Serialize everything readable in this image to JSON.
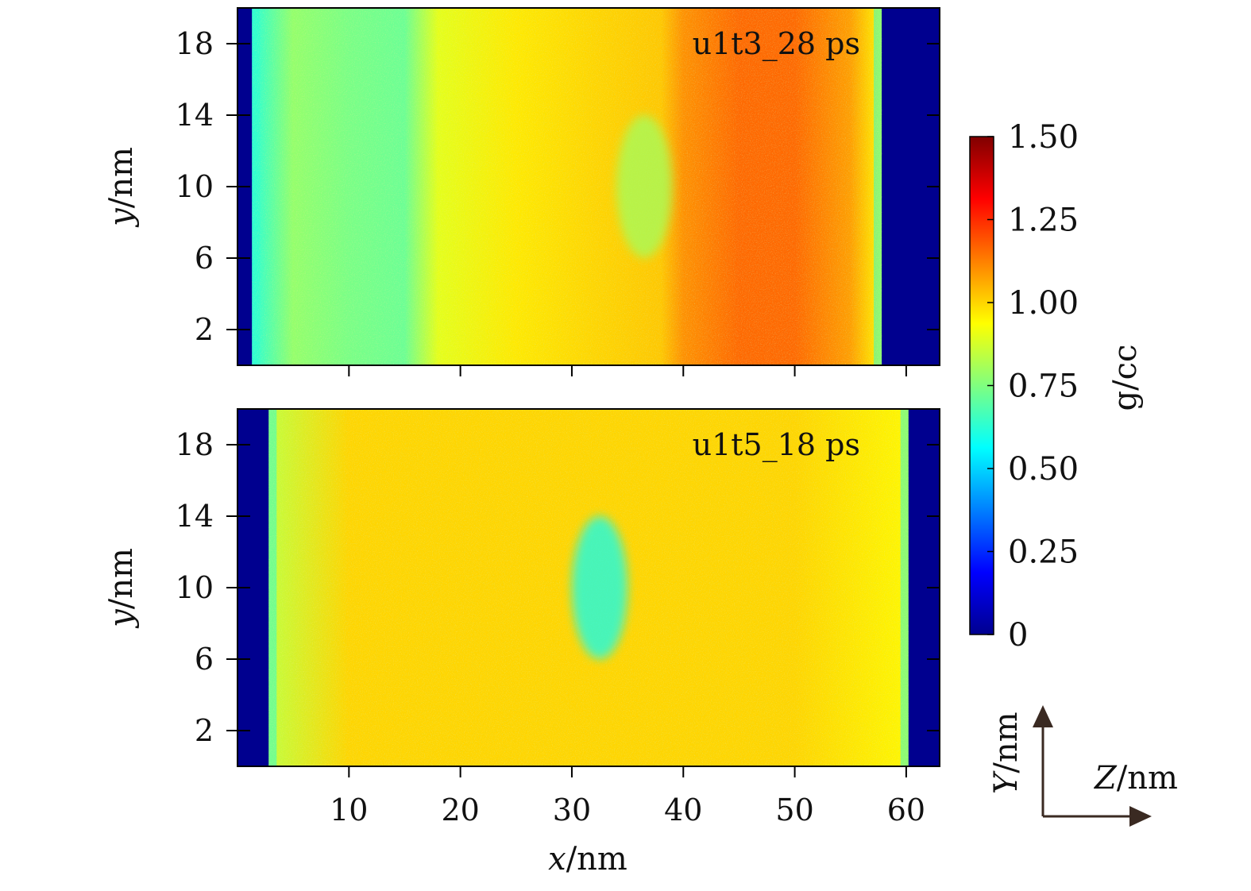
{
  "chart_data": [
    {
      "type": "heatmap",
      "panel_label": "u1t3_28 ps",
      "xlabel": {
        "var": "x",
        "unit": "/nm"
      },
      "ylabel": {
        "var": "y",
        "unit": "/nm"
      },
      "xlim": [
        0,
        63
      ],
      "ylim": [
        0,
        20
      ],
      "yticks": [
        "2",
        "6",
        "10",
        "14",
        "18"
      ],
      "ytick_values": [
        2,
        6,
        10,
        14,
        18
      ],
      "xticks": [
        10,
        20,
        30,
        40,
        50,
        60
      ],
      "vacuum_regions": [
        [
          0,
          1.3
        ],
        [
          57.8,
          63
        ]
      ],
      "density_profile": [
        {
          "x": 1.3,
          "value": 0.62
        },
        {
          "x": 5,
          "value": 0.78
        },
        {
          "x": 10,
          "value": 0.74
        },
        {
          "x": 15,
          "value": 0.72
        },
        {
          "x": 18,
          "value": 0.9
        },
        {
          "x": 25,
          "value": 0.97
        },
        {
          "x": 32,
          "value": 1.0
        },
        {
          "x": 38,
          "value": 1.02
        },
        {
          "x": 40,
          "value": 1.1
        },
        {
          "x": 45,
          "value": 1.16
        },
        {
          "x": 50,
          "value": 1.16
        },
        {
          "x": 55,
          "value": 1.08
        },
        {
          "x": 57.8,
          "value": 0.95
        }
      ],
      "void_feature": {
        "x_range": [
          34,
          39
        ],
        "y_range": [
          6,
          14
        ],
        "value": 0.8
      }
    },
    {
      "type": "heatmap",
      "panel_label": "u1t5_18 ps",
      "xlabel": {
        "var": "x",
        "unit": "/nm"
      },
      "ylabel": {
        "var": "y",
        "unit": "/nm"
      },
      "xlim": [
        0,
        63
      ],
      "ylim": [
        0,
        20
      ],
      "yticks": [
        "2",
        "6",
        "10",
        "14",
        "18"
      ],
      "ytick_values": [
        2,
        6,
        10,
        14,
        18
      ],
      "xticks": [
        "10",
        "20",
        "30",
        "40",
        "50",
        "60"
      ],
      "xtick_values": [
        10,
        20,
        30,
        40,
        50,
        60
      ],
      "vacuum_regions": [
        [
          0,
          2.8
        ],
        [
          60.2,
          63
        ]
      ],
      "density_profile": [
        {
          "x": 2.8,
          "value": 0.85
        },
        {
          "x": 10,
          "value": 1.0
        },
        {
          "x": 30,
          "value": 1.0
        },
        {
          "x": 50,
          "value": 1.0
        },
        {
          "x": 60.2,
          "value": 0.95
        }
      ],
      "void_feature": {
        "x_range": [
          30,
          35
        ],
        "y_range": [
          6,
          14
        ],
        "value": 0.58
      }
    }
  ],
  "colorbar": {
    "label": "g/cc",
    "min": 0,
    "max": 1.5,
    "colormap": "jet",
    "vacuum_color": "#00008f",
    "ticks": [
      "0",
      "0.25",
      "0.50",
      "0.75",
      "1.00",
      "1.25",
      "1.50"
    ],
    "tick_values": [
      0,
      0.25,
      0.5,
      0.75,
      1.0,
      1.25,
      1.5
    ]
  },
  "orientation": {
    "vertical_label": {
      "var": "Y",
      "unit": "/nm"
    },
    "horizontal_label": {
      "var": "Z",
      "unit": "/nm"
    }
  }
}
